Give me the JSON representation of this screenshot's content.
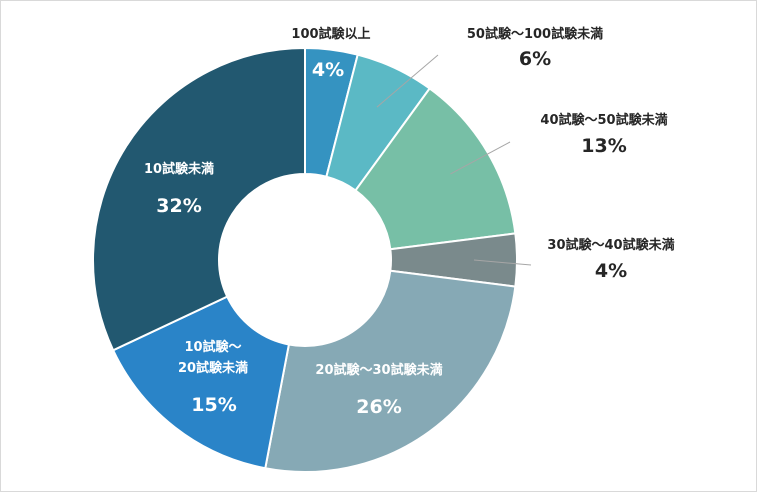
{
  "chart_data": {
    "type": "pie",
    "donut": true,
    "categories": [
      "100試験以上",
      "50試験～100試験未満",
      "40試験～50試験未満",
      "30試験～40試験未満",
      "20試験～30試験未満",
      "10試験～20試験未満",
      "10試験未満"
    ],
    "values": [
      4,
      6,
      13,
      4,
      26,
      15,
      32
    ],
    "value_labels": [
      "4%",
      "6%",
      "13%",
      "4%",
      "26%",
      "15%",
      "32%"
    ],
    "colors": [
      "#3593c1",
      "#5bb9c5",
      "#77bfa6",
      "#7a8a8c",
      "#86a9b5",
      "#2a84c8",
      "#225870"
    ],
    "legend": "none"
  }
}
